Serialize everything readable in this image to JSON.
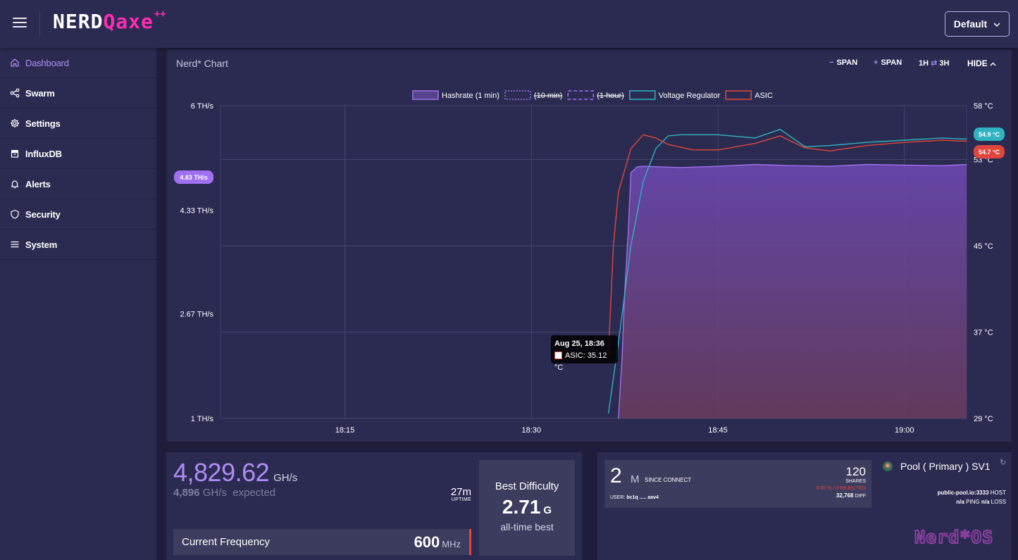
{
  "app": {
    "logo_main": "NERD",
    "logo_accent": "Qaxe",
    "logo_suffix": "++",
    "theme_select": "Default"
  },
  "sidebar": {
    "items": [
      {
        "label": "Dashboard",
        "icon": "home-icon",
        "active": true
      },
      {
        "label": "Swarm",
        "icon": "share-icon",
        "active": false
      },
      {
        "label": "Settings",
        "icon": "gear-icon",
        "active": false
      },
      {
        "label": "InfluxDB",
        "icon": "database-icon",
        "active": false
      },
      {
        "label": "Alerts",
        "icon": "bell-icon",
        "active": false
      },
      {
        "label": "Security",
        "icon": "shield-icon",
        "active": false
      },
      {
        "label": "System",
        "icon": "list-icon",
        "active": false
      }
    ]
  },
  "chart_card": {
    "title": "Nerd* Chart",
    "controls": {
      "minus_span_symbol": "−",
      "minus_span_label": "SPAN",
      "plus_span_symbol": "+",
      "plus_span_label": "SPAN",
      "range_1": "1H",
      "range_swap": "⇄",
      "range_2": "3H",
      "hide_label": "HIDE"
    },
    "badges": {
      "hashrate": "4.83 TH/s",
      "vr_temp": "54.9 °C",
      "asic_temp": "54.7 °C"
    },
    "tooltip": {
      "title": "Aug 25, 18:36",
      "line": "ASIC: 35.12 °C"
    }
  },
  "chart_data": {
    "type": "line",
    "legend": [
      {
        "name": "Hashrate  (1 min)",
        "style": "solid",
        "color": "#a070f0",
        "hidden": false
      },
      {
        "name": "(10 min)",
        "style": "dotted",
        "color": "#a070f0",
        "hidden": true
      },
      {
        "name": "(1 hour)",
        "style": "dashed",
        "color": "#a070f0",
        "hidden": true
      },
      {
        "name": "Voltage Regulator",
        "style": "solid",
        "color": "#2fb3c0",
        "hidden": false
      },
      {
        "name": "ASIC",
        "style": "solid",
        "color": "#e0463c",
        "hidden": false
      }
    ],
    "x_ticks": [
      "18:15",
      "18:30",
      "18:45",
      "19:00"
    ],
    "x_range": [
      "18:05",
      "19:05"
    ],
    "y_left_ticks": [
      "6 TH/s",
      "4.33 TH/s",
      "2.67 TH/s",
      "1 TH/s"
    ],
    "y_left_range": [
      1,
      6
    ],
    "y_right_ticks": [
      "58 °C",
      "53 °C",
      "45 °C",
      "37 °C",
      "29 °C"
    ],
    "y_right_range": [
      29,
      58
    ],
    "series": [
      {
        "name": "Hashrate  (1 min)",
        "axis": "left",
        "unit": "TH/s",
        "x": [
          "18:37",
          "18:37.3",
          "18:37.5",
          "18:37.8",
          "18:38",
          "18:38.5",
          "18:39",
          "18:42",
          "18:45",
          "18:48",
          "18:51",
          "18:54",
          "18:57",
          "19:00",
          "19:03",
          "19:05"
        ],
        "y": [
          1.0,
          2.0,
          3.0,
          4.0,
          4.93,
          5.02,
          5.03,
          5.01,
          5.03,
          5.06,
          5.04,
          5.03,
          5.06,
          5.05,
          5.04,
          5.06
        ]
      },
      {
        "name": "Voltage Regulator",
        "axis": "right",
        "unit": "°C",
        "x": [
          "18:36.2",
          "18:37",
          "18:38",
          "18:39",
          "18:40",
          "18:41",
          "18:42",
          "18:45",
          "18:48",
          "18:50",
          "18:52",
          "18:54",
          "18:57",
          "19:00",
          "19:03",
          "19:05"
        ],
        "y": [
          29.5,
          36,
          45,
          51,
          54,
          55.2,
          55.3,
          55.3,
          55.0,
          55.8,
          54.2,
          54.3,
          54.6,
          54.8,
          55.0,
          54.9
        ]
      },
      {
        "name": "ASIC",
        "axis": "right",
        "unit": "°C",
        "x": [
          "18:36.2",
          "18:36.6",
          "18:37",
          "18:38",
          "18:39",
          "18:40",
          "18:41",
          "18:43",
          "18:45",
          "18:48",
          "18:50",
          "18:52",
          "18:54",
          "18:57",
          "19:00",
          "19:03",
          "19:05"
        ],
        "y": [
          35.12,
          45,
          50,
          54,
          55.3,
          55.0,
          54.4,
          53.9,
          53.9,
          54.5,
          55.2,
          54.1,
          53.8,
          54.3,
          54.6,
          54.8,
          54.7
        ]
      }
    ]
  },
  "hash_card": {
    "hashrate": "4,829.62",
    "hashrate_unit": "GH/s",
    "expected_value": "4,896",
    "expected_unit": "GH/s",
    "expected_label": "expected",
    "uptime_value": "27m",
    "uptime_label": "UPTIME",
    "freq_label": "Current Frequency",
    "freq_value": "600",
    "freq_unit": "MHz",
    "best_title": "Best Difficulty",
    "best_value": "2.71",
    "best_unit": "G",
    "best_sub": "all-time best"
  },
  "pool_card": {
    "big_value": "2",
    "big_unit": "M",
    "since_label": "SINCE CONNECT",
    "user_label": "USER:",
    "user_value": "bc1q ..... aav4",
    "shares_value": "120",
    "shares_label": "SHARES",
    "rejected_text": "0.00 % / 0  REJECTED",
    "diff_value": "32,768",
    "diff_label": "DIFF",
    "pool_name": "Pool ( Primary ) SV1",
    "host_value": "public-pool.io:3333",
    "host_label": "HOST",
    "ping_value": "n/a",
    "ping_label": "PING",
    "loss_value": "n/a",
    "loss_label": "LOSS",
    "brand": "Nerd*OS"
  }
}
